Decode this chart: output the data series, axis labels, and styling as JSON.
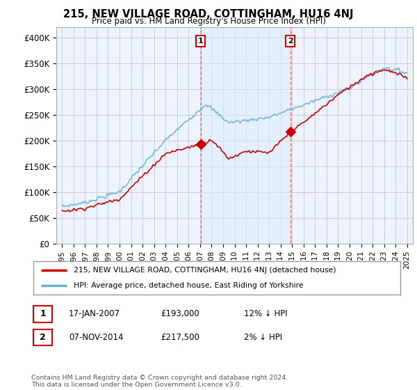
{
  "title": "215, NEW VILLAGE ROAD, COTTINGHAM, HU16 4NJ",
  "subtitle": "Price paid vs. HM Land Registry's House Price Index (HPI)",
  "ylabel_ticks": [
    "£0",
    "£50K",
    "£100K",
    "£150K",
    "£200K",
    "£250K",
    "£300K",
    "£350K",
    "£400K"
  ],
  "ytick_values": [
    0,
    50000,
    100000,
    150000,
    200000,
    250000,
    300000,
    350000,
    400000
  ],
  "ylim": [
    0,
    420000
  ],
  "xlim_start": 1994.5,
  "xlim_end": 2025.5,
  "sale1_x": 2007.04,
  "sale1_y": 193000,
  "sale1_label": "1",
  "sale2_x": 2014.84,
  "sale2_y": 217500,
  "sale2_label": "2",
  "hpi_color": "#6BAED6",
  "sold_color": "#CC0000",
  "vline_color": "#FF6666",
  "grid_color": "#CCCCCC",
  "bg_color": "#FFFFFF",
  "plot_bg_color": "#EEF4FF",
  "shade_color": "#DDEEFF",
  "legend_line1": "215, NEW VILLAGE ROAD, COTTINGHAM, HU16 4NJ (detached house)",
  "legend_line2": "HPI: Average price, detached house, East Riding of Yorkshire",
  "table_row1": [
    "1",
    "17-JAN-2007",
    "£193,000",
    "12% ↓ HPI"
  ],
  "table_row2": [
    "2",
    "07-NOV-2014",
    "£217,500",
    "2% ↓ HPI"
  ],
  "footnote": "Contains HM Land Registry data © Crown copyright and database right 2024.\nThis data is licensed under the Open Government Licence v3.0.",
  "xtick_years": [
    1995,
    1996,
    1997,
    1998,
    1999,
    2000,
    2001,
    2002,
    2003,
    2004,
    2005,
    2006,
    2007,
    2008,
    2009,
    2010,
    2011,
    2012,
    2013,
    2014,
    2015,
    2016,
    2017,
    2018,
    2019,
    2020,
    2021,
    2022,
    2023,
    2024,
    2025
  ]
}
